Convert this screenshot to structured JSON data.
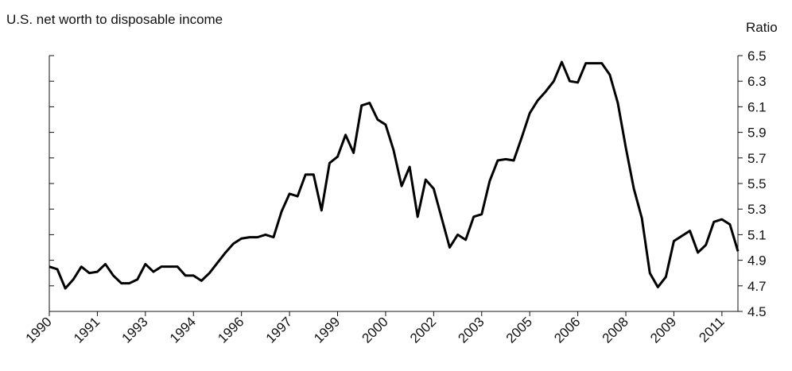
{
  "chart_data": {
    "type": "line",
    "title": "U.S. net worth to disposable income",
    "y_axis_label": "Ratio",
    "categories": [
      "1990",
      null,
      null,
      null,
      null,
      null,
      "1991",
      null,
      null,
      null,
      null,
      null,
      "1993",
      null,
      null,
      null,
      null,
      null,
      "1994",
      null,
      null,
      null,
      null,
      null,
      "1996",
      null,
      null,
      null,
      null,
      null,
      "1997",
      null,
      null,
      null,
      null,
      null,
      "1999",
      null,
      null,
      null,
      null,
      null,
      "2000",
      null,
      null,
      null,
      null,
      null,
      "2002",
      null,
      null,
      null,
      null,
      null,
      "2003",
      null,
      null,
      null,
      null,
      null,
      "2005",
      null,
      null,
      null,
      null,
      null,
      "2006",
      null,
      null,
      null,
      null,
      null,
      "2008",
      null,
      null,
      null,
      null,
      null,
      "2009",
      null,
      null,
      null,
      null,
      null,
      "2011",
      null,
      null
    ],
    "series": [
      {
        "name": "Net worth to disposable income",
        "color": "#000000",
        "values": [
          4.85,
          4.83,
          4.68,
          4.75,
          4.85,
          4.8,
          4.81,
          4.87,
          4.78,
          4.72,
          4.72,
          4.75,
          4.87,
          4.81,
          4.85,
          4.85,
          4.85,
          4.78,
          4.78,
          4.74,
          4.8,
          4.88,
          4.96,
          5.03,
          5.07,
          5.08,
          5.08,
          5.1,
          5.08,
          5.28,
          5.42,
          5.4,
          5.57,
          5.57,
          5.29,
          5.66,
          5.71,
          5.88,
          5.74,
          6.11,
          6.13,
          6.0,
          5.96,
          5.76,
          5.48,
          5.63,
          5.24,
          5.53,
          5.46,
          5.23,
          5.0,
          5.1,
          5.06,
          5.24,
          5.26,
          5.52,
          5.68,
          5.69,
          5.68,
          5.86,
          6.05,
          6.15,
          6.22,
          6.3,
          6.45,
          6.3,
          6.29,
          6.44,
          6.44,
          6.44,
          6.35,
          6.13,
          5.78,
          5.46,
          5.23,
          4.8,
          4.69,
          4.77,
          5.05,
          5.09,
          5.13,
          4.96,
          5.02,
          5.2,
          5.22,
          5.18,
          4.97
        ]
      }
    ],
    "ylim": [
      4.5,
      6.5
    ],
    "yticks": [
      4.5,
      4.7,
      4.9,
      5.1,
      5.3,
      5.5,
      5.7,
      5.9,
      6.1,
      6.3,
      6.5
    ],
    "y_axis_side": "right",
    "grid": false
  }
}
